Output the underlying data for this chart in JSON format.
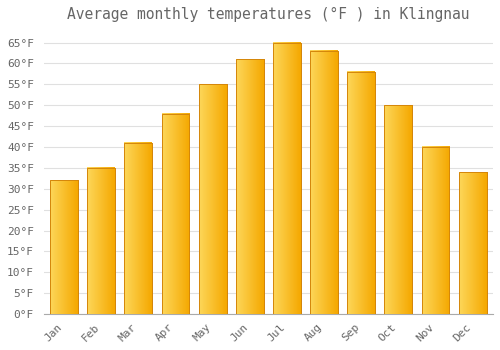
{
  "title": "Average monthly temperatures (°F ) in Klingnau",
  "months": [
    "Jan",
    "Feb",
    "Mar",
    "Apr",
    "May",
    "Jun",
    "Jul",
    "Aug",
    "Sep",
    "Oct",
    "Nov",
    "Dec"
  ],
  "values": [
    32,
    35,
    41,
    48,
    55,
    61,
    65,
    63,
    58,
    50,
    40,
    34
  ],
  "bar_color_left": "#FDD75A",
  "bar_color_right": "#F5A800",
  "bar_edge_color": "#D4860A",
  "background_color": "#FFFFFF",
  "grid_color": "#E0E0E0",
  "text_color": "#666666",
  "ylim": [
    0,
    68
  ],
  "yticks": [
    0,
    5,
    10,
    15,
    20,
    25,
    30,
    35,
    40,
    45,
    50,
    55,
    60,
    65
  ],
  "title_fontsize": 10.5,
  "tick_fontsize": 8,
  "font_family": "monospace",
  "bar_width": 0.75
}
